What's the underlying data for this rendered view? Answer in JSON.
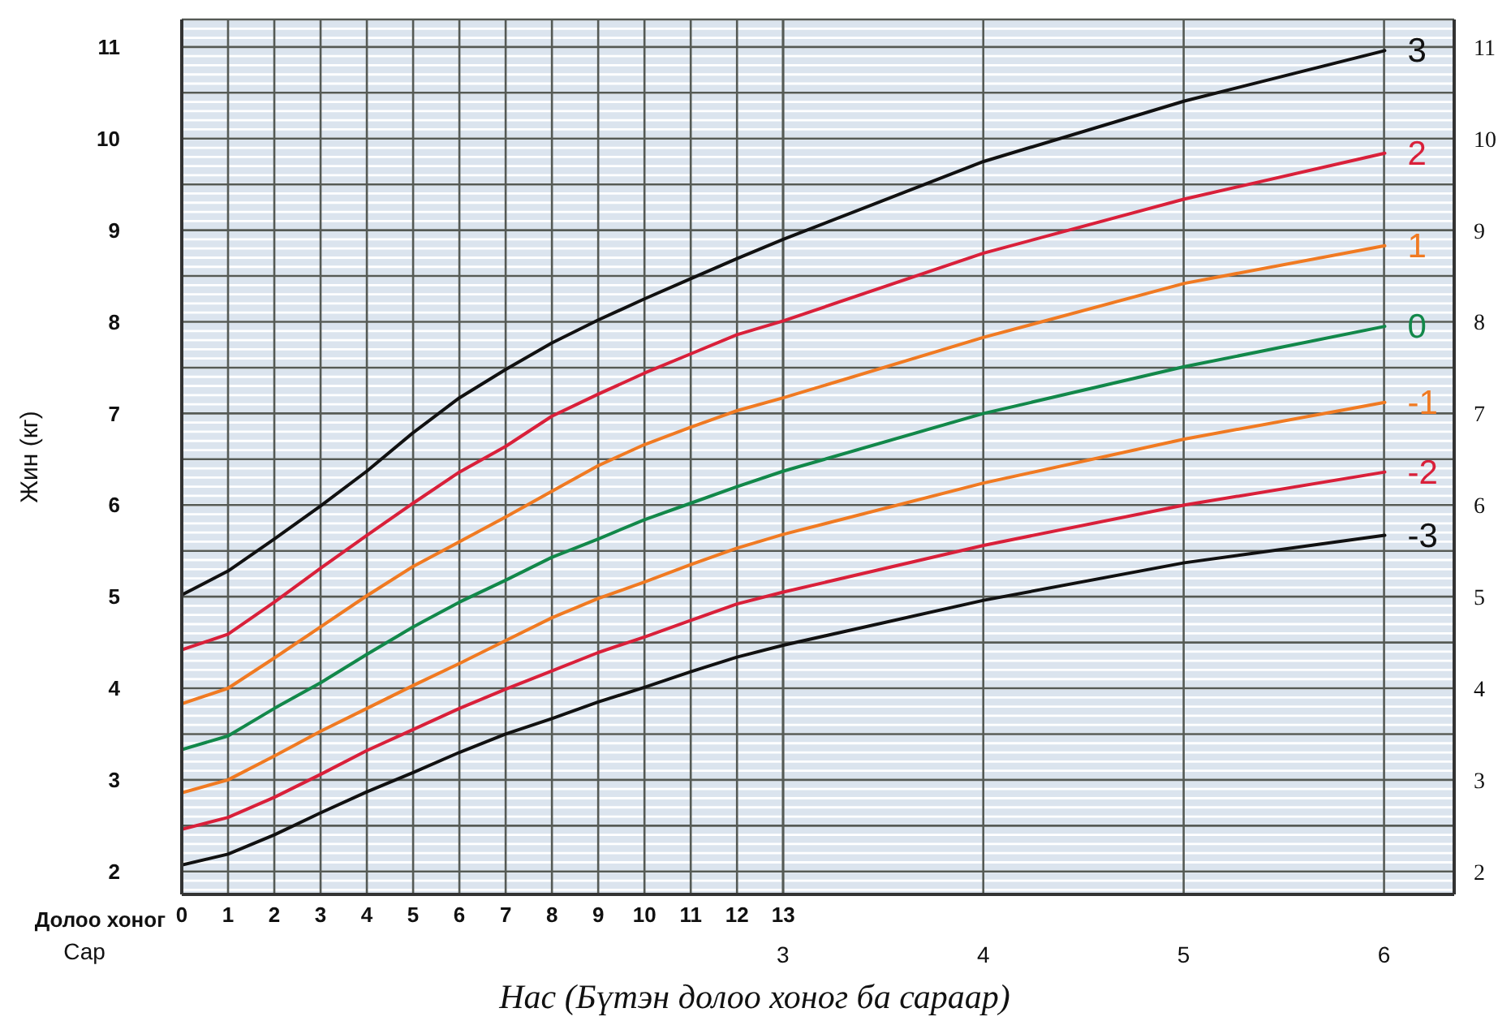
{
  "chart_data": {
    "type": "line",
    "xlabel": "Нас (Бүтэн долоо хоног ба сараар)",
    "ylabel": "Жин (кг)",
    "x2label": "Сар",
    "annotations": [
      "Долоо хоног"
    ],
    "x": [
      0,
      1,
      2,
      3,
      4,
      5,
      6,
      7,
      8,
      9,
      10,
      11,
      12,
      13,
      17.33,
      21.67,
      26
    ],
    "xlim": [
      0,
      27.5
    ],
    "xticks": [
      0,
      1,
      2,
      3,
      4,
      5,
      6,
      7,
      8,
      9,
      10,
      11,
      12,
      13
    ],
    "x2lim": [
      0,
      6.35
    ],
    "x2ticks": [
      3,
      4,
      5,
      6
    ],
    "ylim": [
      1.75,
      11.3
    ],
    "yticks": [
      2,
      {
        "value": 2.5,
        "label": null
      },
      3,
      {
        "value": 3.5,
        "label": null
      },
      4,
      {
        "value": 4.5,
        "label": null
      },
      5,
      {
        "value": 5.5,
        "label": null
      },
      6,
      {
        "value": 6.5,
        "label": null
      },
      7,
      {
        "value": 7.5,
        "label": null
      },
      8,
      {
        "value": 8.5,
        "label": null
      },
      9,
      {
        "value": 9.5,
        "label": null
      },
      10,
      {
        "value": 10.5,
        "label": null
      },
      11
    ],
    "y2lim": [
      1.75,
      11.3
    ],
    "y2ticks": [
      2,
      3,
      4,
      5,
      6,
      7,
      8,
      9,
      10,
      11
    ],
    "grid": true,
    "legend": false,
    "marker": "none",
    "line_style": "solid",
    "series": [
      {
        "name": "3",
        "color": "#111111",
        "values": [
          5.02,
          5.28,
          5.63,
          5.99,
          6.37,
          6.79,
          7.17,
          7.48,
          7.77,
          8.02,
          8.25,
          8.47,
          8.69,
          8.9,
          9.75,
          10.41,
          10.96
        ]
      },
      {
        "name": "2",
        "color": "#d9203a",
        "values": [
          4.42,
          4.59,
          4.94,
          5.31,
          5.67,
          6.02,
          6.36,
          6.64,
          6.97,
          7.21,
          7.44,
          7.65,
          7.86,
          8.01,
          8.75,
          9.34,
          9.84
        ]
      },
      {
        "name": "1",
        "color": "#f07a22",
        "values": [
          3.83,
          4.0,
          4.33,
          4.67,
          5.01,
          5.33,
          5.6,
          5.87,
          6.15,
          6.43,
          6.66,
          6.85,
          7.03,
          7.17,
          7.83,
          8.42,
          8.83
        ]
      },
      {
        "name": "0",
        "color": "#12884a",
        "values": [
          3.33,
          3.48,
          3.78,
          4.06,
          4.37,
          4.67,
          4.94,
          5.18,
          5.43,
          5.63,
          5.84,
          6.02,
          6.2,
          6.37,
          7.0,
          7.51,
          7.95
        ]
      },
      {
        "name": "-1",
        "color": "#f07a22",
        "values": [
          2.86,
          3.0,
          3.26,
          3.53,
          3.78,
          4.03,
          4.27,
          4.52,
          4.77,
          4.98,
          5.16,
          5.35,
          5.53,
          5.68,
          6.24,
          6.72,
          7.12
        ]
      },
      {
        "name": "-2",
        "color": "#d9203a",
        "values": [
          2.46,
          2.59,
          2.81,
          3.06,
          3.32,
          3.55,
          3.78,
          3.99,
          4.19,
          4.39,
          4.56,
          4.74,
          4.92,
          5.05,
          5.56,
          6.0,
          6.36
        ]
      },
      {
        "name": "-3",
        "color": "#111111",
        "values": [
          2.07,
          2.19,
          2.4,
          2.64,
          2.87,
          3.08,
          3.3,
          3.5,
          3.67,
          3.85,
          4.01,
          4.18,
          4.34,
          4.47,
          4.96,
          5.37,
          5.67
        ]
      }
    ]
  }
}
